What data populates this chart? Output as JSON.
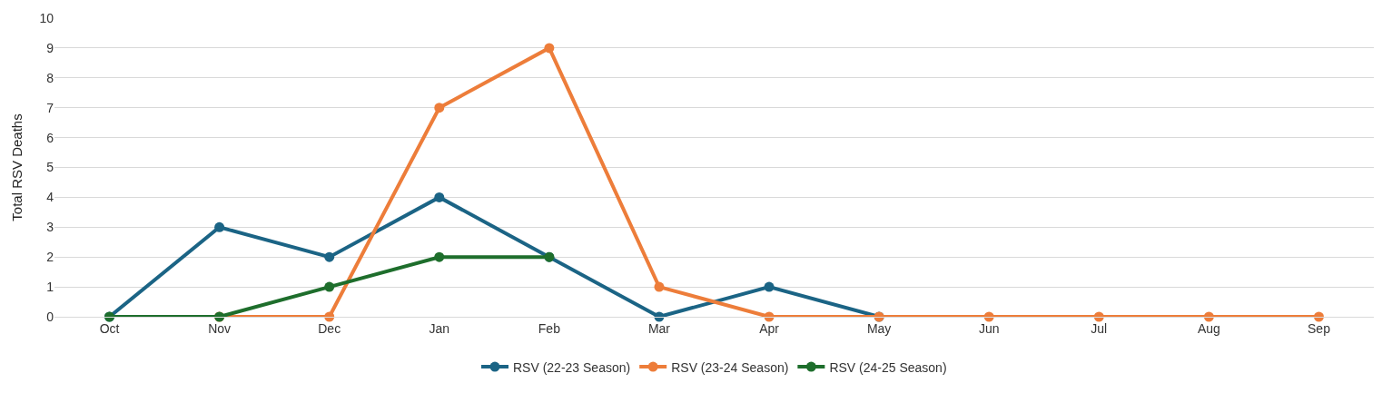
{
  "chart_data": {
    "type": "line",
    "ylabel": "Total RSV Deaths",
    "categories": [
      "Oct",
      "Nov",
      "Dec",
      "Jan",
      "Feb",
      "Mar",
      "Apr",
      "May",
      "Jun",
      "Jul",
      "Aug",
      "Sep"
    ],
    "series": [
      {
        "name": "RSV (22-23 Season)",
        "color": "#1b6485",
        "values": [
          0,
          3,
          2,
          4,
          2,
          0,
          1,
          0,
          null,
          null,
          null,
          null
        ]
      },
      {
        "name": "RSV (23-24 Season)",
        "color": "#ed7d3a",
        "values": [
          null,
          0,
          0,
          7,
          9,
          1,
          0,
          0,
          0,
          0,
          0,
          0
        ]
      },
      {
        "name": "RSV (24-25 Season)",
        "color": "#1e6e2c",
        "values": [
          0,
          0,
          1,
          2,
          2,
          null,
          null,
          null,
          null,
          null,
          null,
          null
        ]
      }
    ],
    "ylim": [
      0,
      10
    ],
    "yticks": [
      0,
      1,
      2,
      3,
      4,
      5,
      6,
      7,
      8,
      9,
      10
    ],
    "grid": "y",
    "legend": "bottom",
    "marker": "circle",
    "line_style": "solid"
  }
}
